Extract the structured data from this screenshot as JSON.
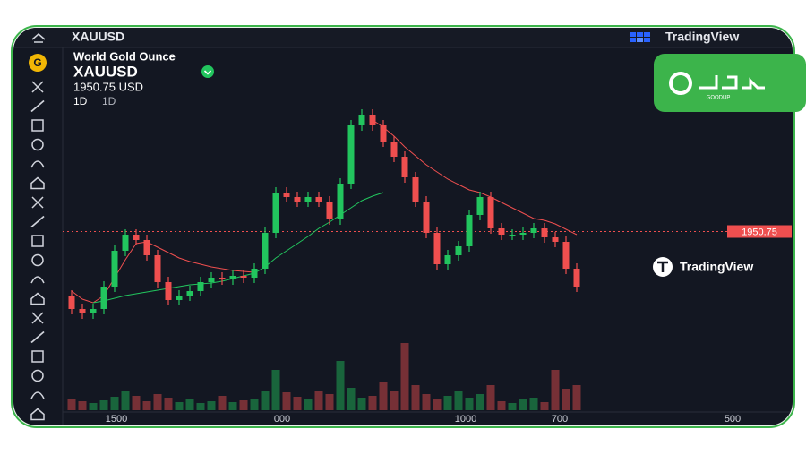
{
  "ui": {
    "symbol": "XAUUSD",
    "brand": "TradingView",
    "icon_letter": "G",
    "instrument": "World Gold Ounce",
    "legend_symbol": "XAUUSD",
    "price_text": "1950.75 USD",
    "interval": "1D",
    "interval_2": "1D",
    "watermark": "TradingView",
    "badge_text": "GOODUP"
  },
  "chart_data": {
    "type": "candlestick",
    "open": [
      1915,
      1907.5,
      1905,
      1907.5,
      1920,
      1940,
      1949,
      1946,
      1937.5,
      1922.5,
      1912.5,
      1915,
      1917.5,
      1922.5,
      1925,
      1924,
      1926,
      1925,
      1930,
      1950,
      1972.5,
      1970,
      1967.5,
      1970,
      1967.5,
      1957.5,
      1977.5,
      2010,
      2016,
      2010,
      2001,
      1992.5,
      1981,
      1967.5,
      1950,
      1932.5,
      1937.5,
      1942.5,
      1960,
      1970,
      1952.5,
      1949,
      1949,
      1950,
      1952.5,
      1947.5,
      1945,
      1930
    ],
    "high": [
      1918,
      1910.5,
      1910.5,
      1923,
      1943,
      1952,
      1952,
      1949,
      1940.5,
      1925.5,
      1918,
      1920.5,
      1925.5,
      1928,
      1928,
      1929,
      1929,
      1933,
      1953,
      1975.5,
      1975.5,
      1973,
      1973,
      1973,
      1970.5,
      1980.5,
      2013,
      2019,
      2019,
      2013,
      2004,
      1995.5,
      1984,
      1970.5,
      1953,
      1940.5,
      1945.5,
      1963,
      1973,
      1973,
      1955.5,
      1952,
      1953,
      1955.5,
      1955.5,
      1950.5,
      1948,
      1933
    ],
    "low": [
      1904.5,
      1902,
      1902,
      1904.5,
      1917,
      1937,
      1943,
      1934.5,
      1919.5,
      1909.5,
      1909.5,
      1912,
      1914.5,
      1919.5,
      1921,
      1921,
      1922,
      1922,
      1927,
      1947,
      1967,
      1964.5,
      1964.5,
      1964.5,
      1954.5,
      1954.5,
      1974.5,
      2007,
      2007,
      1998,
      1989.5,
      1978,
      1964.5,
      1947,
      1929.5,
      1929.5,
      1934.5,
      1939.5,
      1957,
      1949.5,
      1946,
      1946,
      1946,
      1947,
      1944.5,
      1942,
      1927,
      1917
    ],
    "close": [
      1907.5,
      1905,
      1907.5,
      1920,
      1940,
      1949,
      1946,
      1937.5,
      1922.5,
      1912.5,
      1915,
      1917.5,
      1922.5,
      1925,
      1924,
      1926,
      1925,
      1930,
      1950,
      1972.5,
      1970,
      1967.5,
      1970,
      1967.5,
      1957.5,
      1977.5,
      2010,
      2016,
      2010,
      2001,
      1992.5,
      1981,
      1967.5,
      1950,
      1932.5,
      1937.5,
      1942.5,
      1960,
      1970,
      1952.5,
      1949,
      1949,
      1950,
      1952.5,
      1947.5,
      1945,
      1930,
      1920
    ],
    "volume": [
      12,
      10,
      8,
      11,
      15,
      22,
      16,
      10,
      18,
      14,
      9,
      12,
      8,
      10,
      16,
      9,
      11,
      13,
      22,
      45,
      20,
      15,
      12,
      22,
      18,
      55,
      25,
      14,
      16,
      32,
      22,
      75,
      28,
      18,
      12,
      16,
      22,
      14,
      18,
      28,
      10,
      8,
      12,
      14,
      9,
      45,
      24,
      28
    ],
    "volume_ylim": [
      0,
      100
    ],
    "ylim": [
      1880,
      2060
    ],
    "up_color": "#22c55e",
    "down_color": "#ef4f4f",
    "lines": [
      {
        "color": "#ef4f4f",
        "values": [
          1917.5,
          1913,
          1911,
          1915,
          1925,
          1935,
          1944,
          1945,
          1942,
          1939,
          1936,
          1934,
          1932.5,
          1931,
          1930,
          1929,
          1928.5,
          1928,
          null,
          null,
          null,
          null,
          null,
          null,
          null,
          null,
          null,
          null,
          2013,
          2009,
          2004,
          1998,
          1993,
          1988,
          1984,
          1980,
          1977,
          1974,
          1972.5,
          1970,
          1967,
          1964,
          1961,
          1958,
          1957,
          1955,
          1952,
          1949
        ]
      },
      {
        "color": "#22c55e",
        "values": [
          null,
          null,
          1911,
          1912,
          1913.5,
          1915,
          1916,
          1917,
          1918,
          1919,
          1920,
          1921,
          1921.5,
          1922,
          1923,
          1924.5,
          1926,
          1927.5,
          1931,
          1936,
          1940,
          1944,
          1948,
          1952.5,
          1956,
          1960,
          1964,
          1968,
          1970.5,
          1972.5,
          null,
          null,
          null,
          null,
          null,
          null,
          null,
          null,
          null,
          null,
          null,
          null,
          null,
          null,
          null,
          null,
          null,
          null
        ]
      }
    ],
    "last_price": 1950.75,
    "x_labels": [
      "1500",
      "000",
      "1000",
      "700",
      "500"
    ]
  }
}
